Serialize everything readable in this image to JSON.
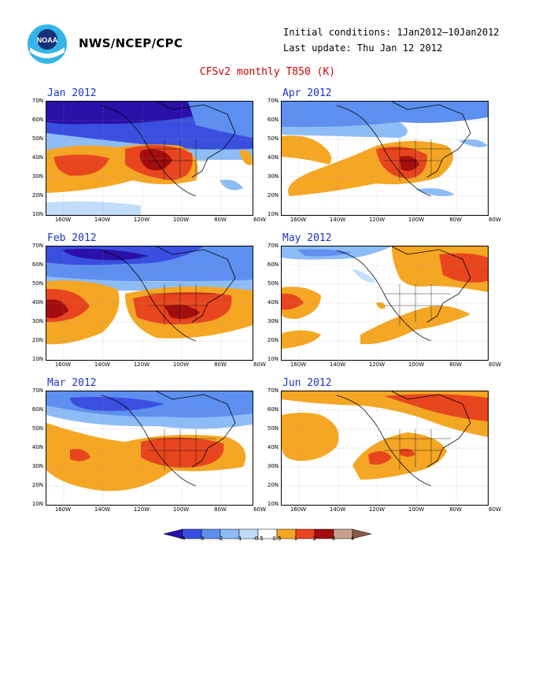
{
  "header": {
    "org": "NWS/NCEP/CPC",
    "initial_conditions": "Initial conditions: 1Jan2012–10Jan2012",
    "last_update": "Last update: Thu Jan 12 2012",
    "title": "CFSv2 monthly T850 (K)",
    "logo_text": "NOAA"
  },
  "axes": {
    "lat_labels": [
      "70N",
      "60N",
      "50N",
      "40N",
      "30N",
      "20N",
      "10N"
    ],
    "lon_labels": [
      "160W",
      "140W",
      "120W",
      "100W",
      "80W",
      "60W"
    ]
  },
  "panels": [
    {
      "id": "jan",
      "label": "Jan 2012"
    },
    {
      "id": "apr",
      "label": "Apr 2012"
    },
    {
      "id": "feb",
      "label": "Feb 2012"
    },
    {
      "id": "may",
      "label": "May 2012"
    },
    {
      "id": "mar",
      "label": "Mar 2012"
    },
    {
      "id": "jun",
      "label": "Jun 2012"
    }
  ],
  "colorbar": {
    "labels": [
      "-4",
      "-3",
      "-2",
      "-1",
      "-0.5",
      "0.5",
      "1",
      "2",
      "3",
      "4"
    ],
    "colors": [
      "#2a0fa8",
      "#3a4fe0",
      "#5d8ff0",
      "#8dbcf6",
      "#c2dcfb",
      "#ffffff",
      "#f5a623",
      "#e8451e",
      "#a30d0d",
      "#c8a090",
      "#8a5a48"
    ]
  }
}
